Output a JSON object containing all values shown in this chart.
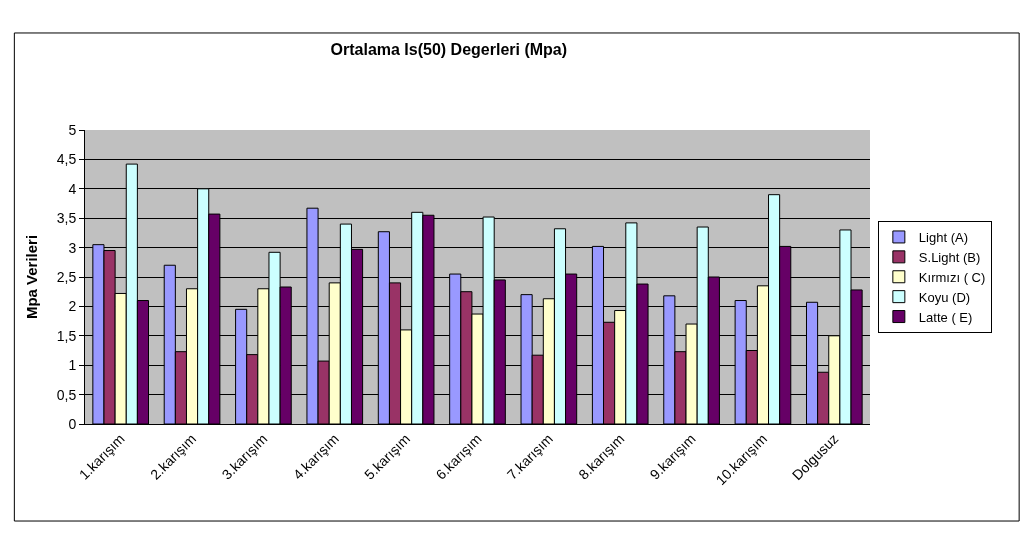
{
  "chart_data": {
    "type": "bar",
    "title": "Ortalama Is(50) Degerleri (Mpa)",
    "ylabel": "Mpa Verileri",
    "categories": [
      "1.karışım",
      "2.karışım",
      "3.karışım",
      "4.karışım",
      "5.karışım",
      "6.karışım",
      "7.karışım",
      "8.karışım",
      "9.karışım",
      "10.karışım",
      "Dolgusuz"
    ],
    "series": [
      {
        "name": "Light (A)",
        "color": "#9999ff",
        "values": [
          3.05,
          2.7,
          1.95,
          3.67,
          3.27,
          2.55,
          2.2,
          3.02,
          2.18,
          2.1,
          2.07
        ]
      },
      {
        "name": "S.Light (B)",
        "color": "#993366",
        "values": [
          2.95,
          1.23,
          1.18,
          1.07,
          2.4,
          2.25,
          1.17,
          1.73,
          1.23,
          1.25,
          0.88
        ]
      },
      {
        "name": "Kırmızı ( C)",
        "color": "#ffffcc",
        "values": [
          2.22,
          2.3,
          2.3,
          2.4,
          1.6,
          1.87,
          2.13,
          1.93,
          1.7,
          2.35,
          1.5
        ]
      },
      {
        "name": "Koyu (D)",
        "color": "#ccffff",
        "values": [
          4.42,
          4.0,
          2.92,
          3.4,
          3.6,
          3.52,
          3.32,
          3.42,
          3.35,
          3.9,
          3.3
        ]
      },
      {
        "name": "Latte ( E)",
        "color": "#660066",
        "values": [
          2.1,
          3.57,
          2.33,
          2.97,
          3.55,
          2.45,
          2.55,
          2.38,
          2.5,
          3.02,
          2.28
        ]
      }
    ],
    "ylim": [
      0,
      5
    ],
    "yticks": [
      0,
      {
        "value": 0.5,
        "label": "0,5"
      },
      1,
      {
        "value": 1.5,
        "label": "1,5"
      },
      2,
      {
        "value": 2.5,
        "label": "2,5"
      },
      3,
      {
        "value": 3.5,
        "label": "3,5"
      },
      4,
      {
        "value": 4.5,
        "label": "4,5"
      },
      5
    ],
    "grid": "y",
    "legend": "right"
  }
}
